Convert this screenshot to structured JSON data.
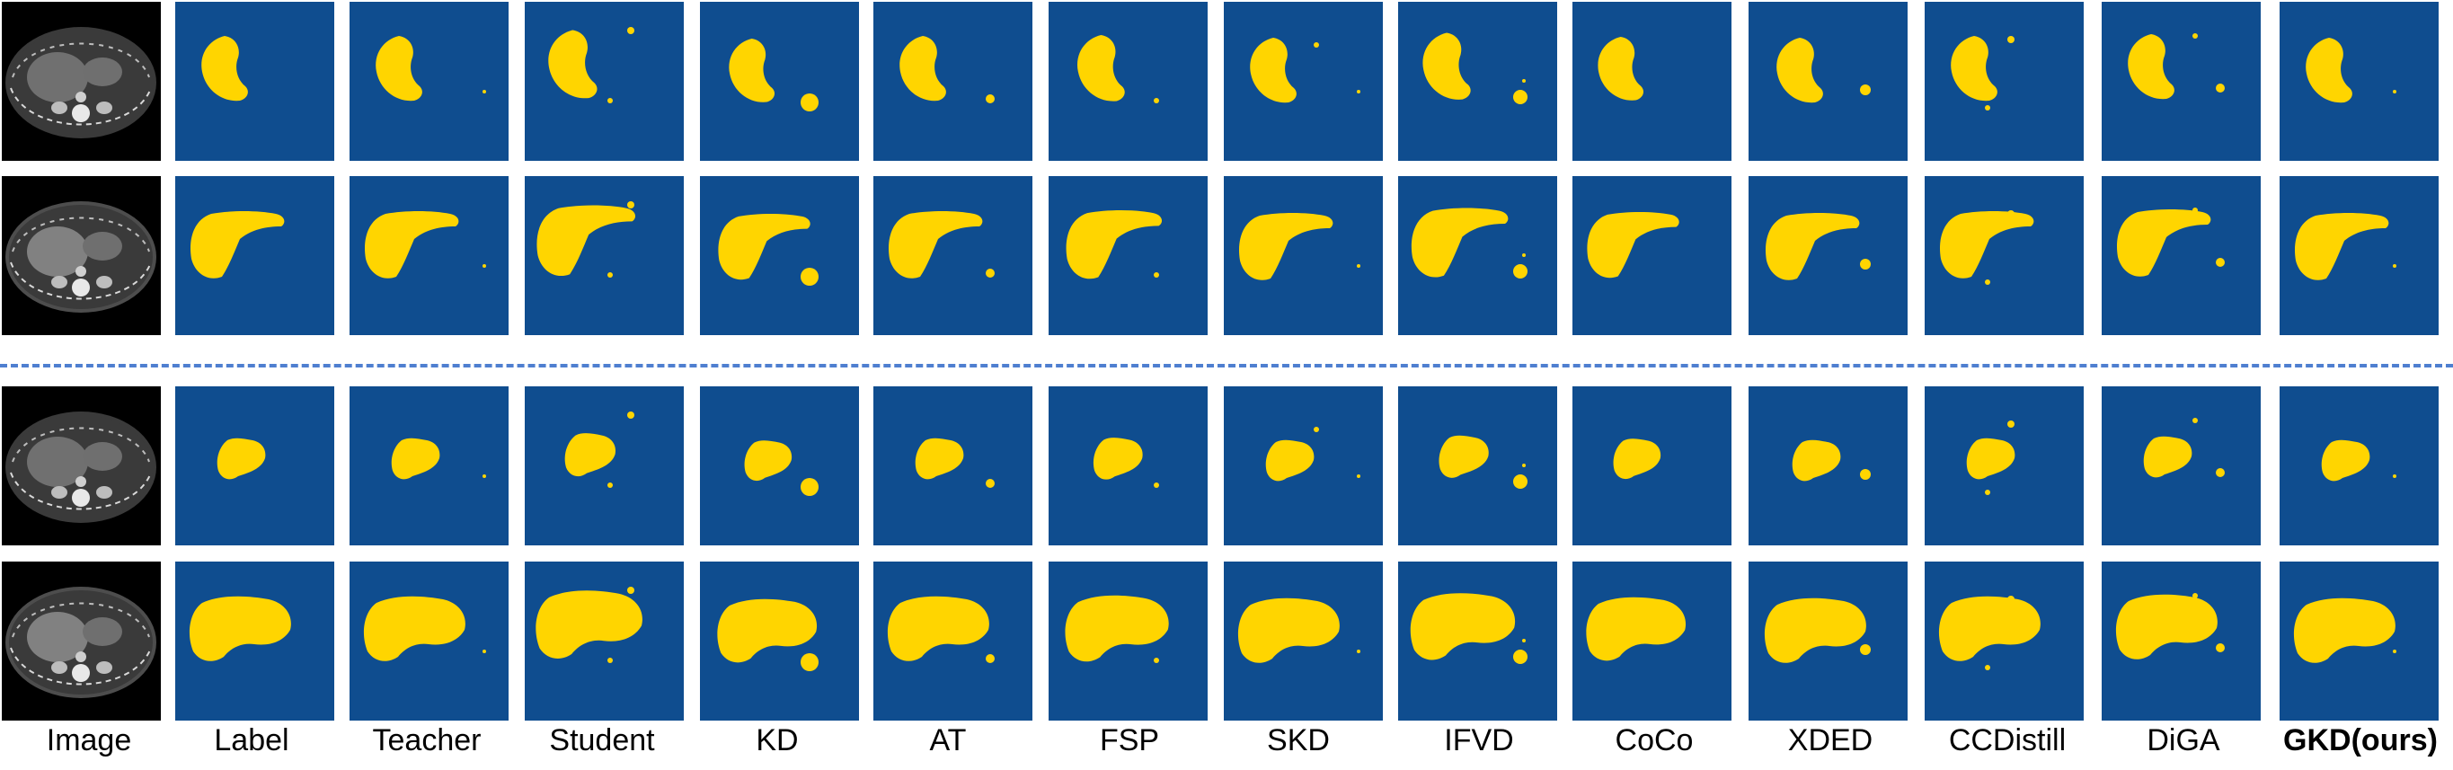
{
  "columns": [
    {
      "label": "Image"
    },
    {
      "label": "Label"
    },
    {
      "label": "Teacher"
    },
    {
      "label": "Student"
    },
    {
      "label": "KD"
    },
    {
      "label": "AT"
    },
    {
      "label": "FSP"
    },
    {
      "label": "SKD"
    },
    {
      "label": "IFVD"
    },
    {
      "label": "CoCo"
    },
    {
      "label": "XDED"
    },
    {
      "label": "CCDistill"
    },
    {
      "label": "DiGA"
    },
    {
      "label": "GKD(ours)",
      "bold": true
    }
  ],
  "rows": 4,
  "colors": {
    "segmentation_background": "#0f4d8f",
    "segmentation_foreground": "#ffd500",
    "separator": "#4f7fd0"
  },
  "icons": {
    "ct_image": "ct-scan-icon",
    "segmentation_mask": "segmentation-mask-icon"
  }
}
